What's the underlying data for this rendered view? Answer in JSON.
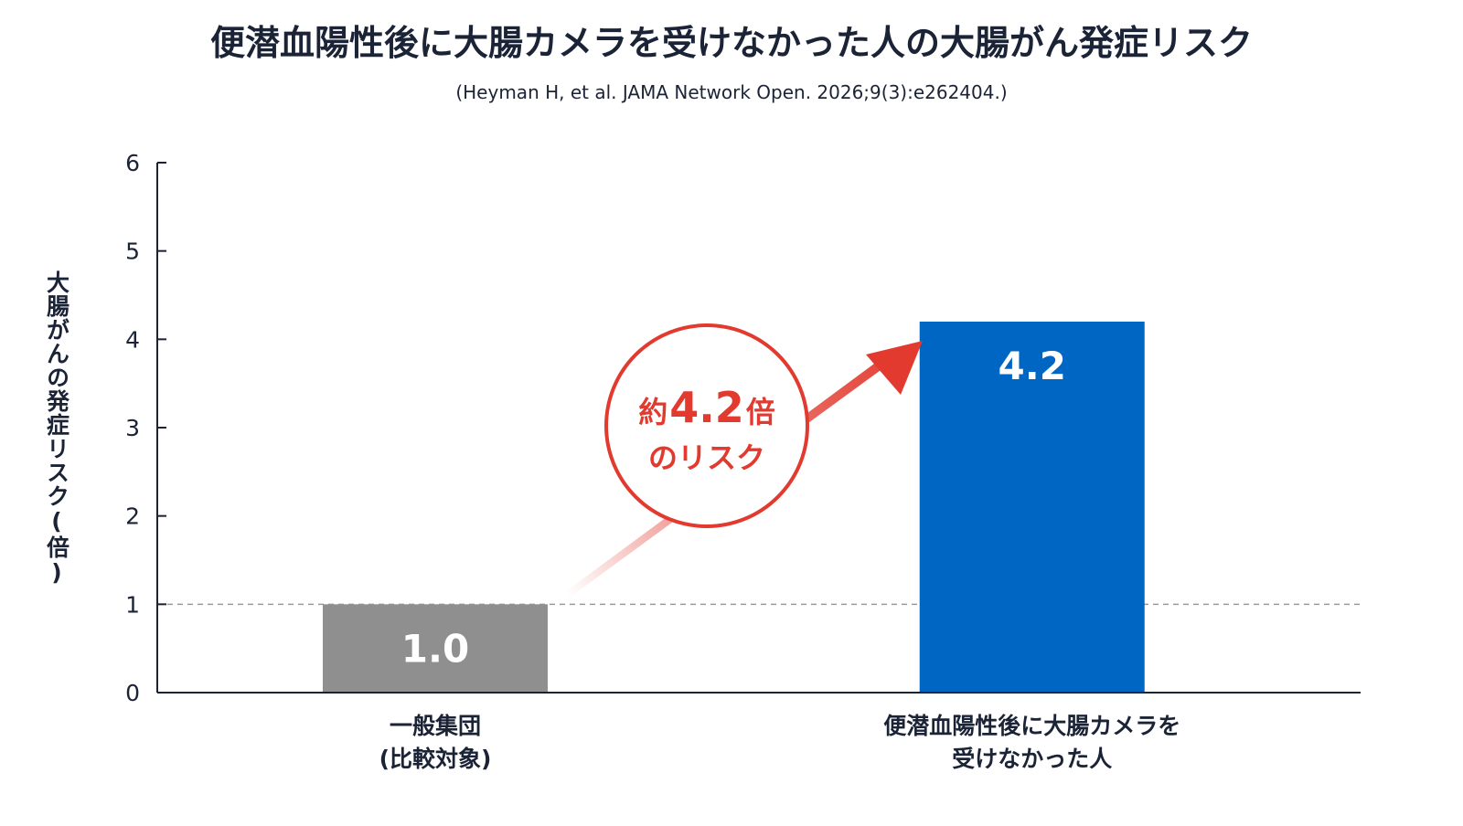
{
  "chart_data": {
    "type": "bar",
    "title": "便潜血陽性後に大腸カメラを受けなかった人の大腸がん発症リスク",
    "subtitle": "(Heyman H, et al. JAMA Network Open. 2026;9(3):e262404.)",
    "xlabel": "",
    "ylabel": "大腸がんの発症リスク(倍)",
    "ylim": [
      0,
      6
    ],
    "yticks": [
      0,
      1,
      2,
      3,
      4,
      5,
      6
    ],
    "grid": false,
    "reference_line": 1,
    "categories": [
      [
        "一般集団",
        "(比較対象)"
      ],
      [
        "便潜血陽性後に大腸カメラを",
        "受けなかった人"
      ]
    ],
    "values": [
      1.0,
      4.2
    ],
    "bar_labels": [
      "1.0",
      "4.2"
    ],
    "colors": {
      "bars": [
        "#8f8f8f",
        "#0066c4"
      ],
      "axis": "#1b2336",
      "reference_line": "#9a9a9a",
      "accent": "#e23a2f"
    },
    "annotation": {
      "line1_prefix": "約",
      "line1_value": "4.2",
      "line1_suffix": "倍",
      "line2": "のリスク"
    }
  }
}
